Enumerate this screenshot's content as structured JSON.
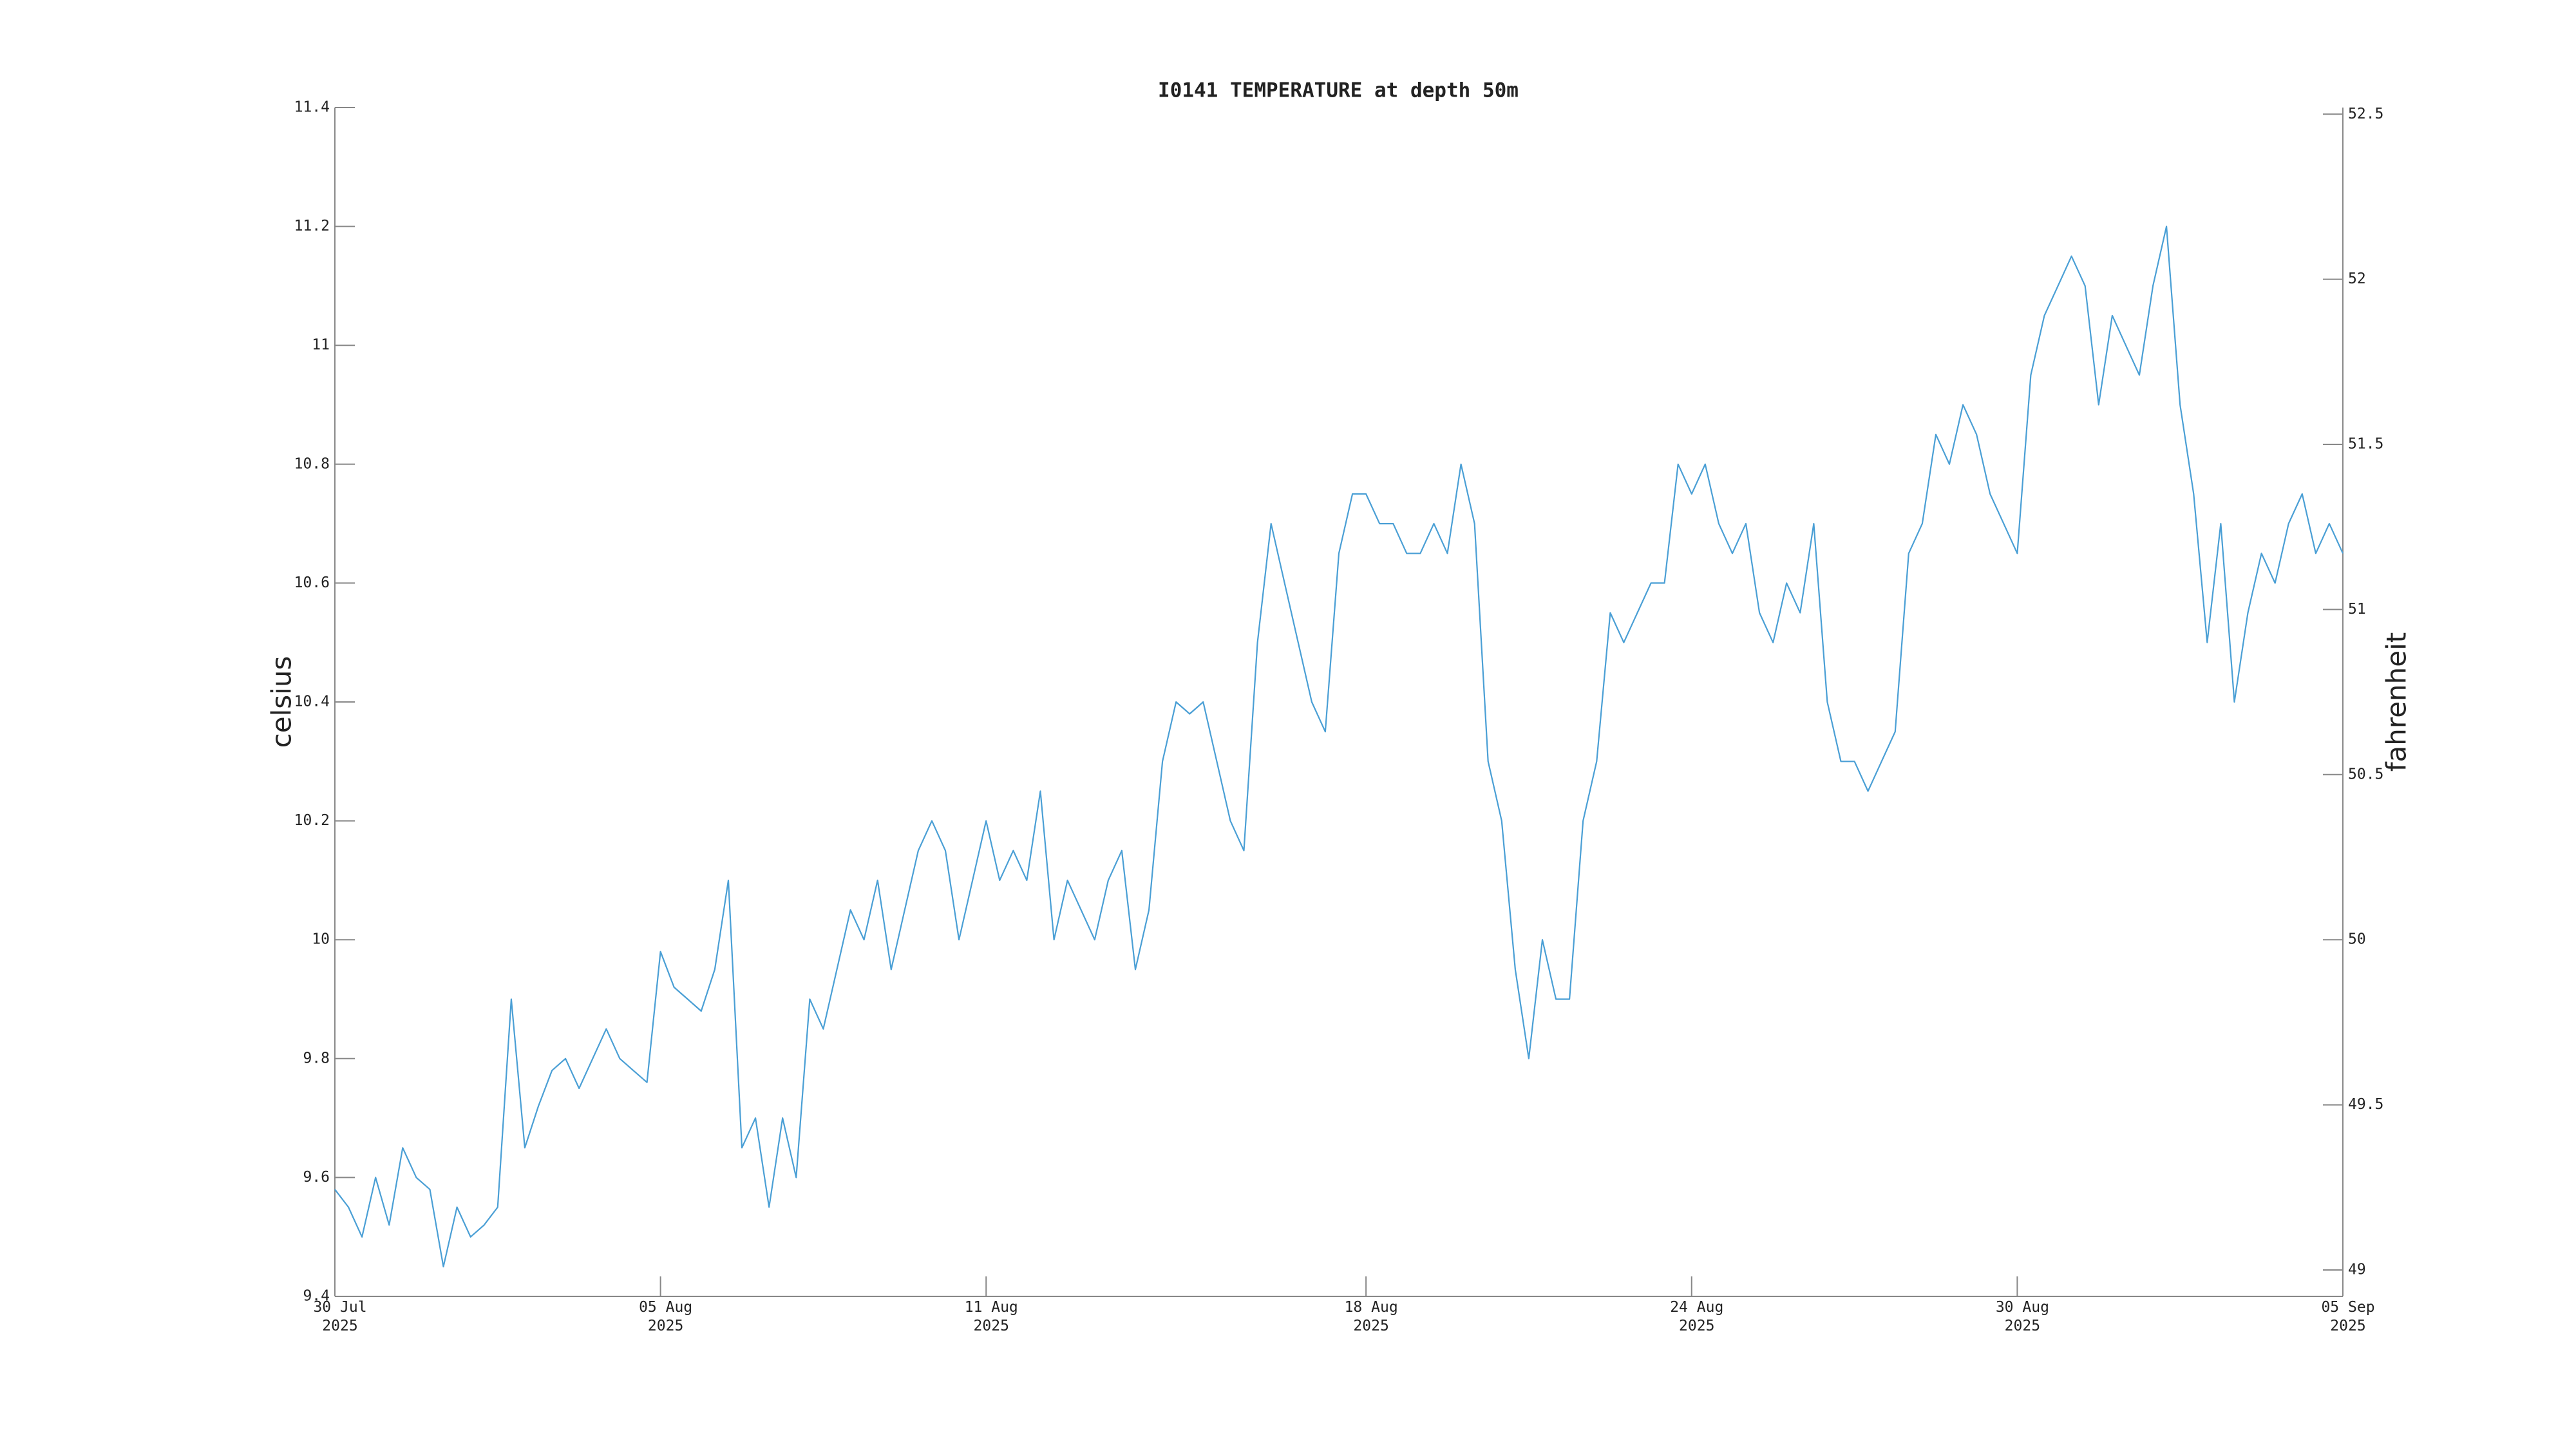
{
  "chart_data": {
    "type": "line",
    "title": "I0141 TEMPERATURE at depth 50m",
    "ylabel": "celsius",
    "y2label": "fahrenheit",
    "xlim": [
      "2025-07-30 00:00",
      "2025-09-05 00:00"
    ],
    "xticks": [
      {
        "value": "2025-07-30 00:00",
        "label": "30 Jul\n2025"
      },
      {
        "value": "2025-08-05 00:00",
        "label": "05 Aug\n2025"
      },
      {
        "value": "2025-08-11 00:00",
        "label": "11 Aug\n2025"
      },
      {
        "value": "2025-08-18 00:00",
        "label": "18 Aug\n2025"
      },
      {
        "value": "2025-08-24 00:00",
        "label": "24 Aug\n2025"
      },
      {
        "value": "2025-08-30 00:00",
        "label": "30 Aug\n2025"
      },
      {
        "value": "2025-09-05 00:00",
        "label": "05 Sep\n2025"
      }
    ],
    "ylim": [
      9.4,
      11.4
    ],
    "yticks": [
      9.4,
      9.6,
      9.8,
      10,
      10.2,
      10.4,
      10.6,
      10.8,
      11,
      11.2,
      11.4
    ],
    "y2lim": [
      48.92,
      52.52
    ],
    "y2ticks": [
      49,
      49.5,
      50,
      50.5,
      51,
      51.5,
      52,
      52.5
    ],
    "grid": false,
    "x": [
      "2025-07-30 00:00",
      "2025-07-30 06:00",
      "2025-07-30 12:00",
      "2025-07-30 18:00",
      "2025-07-31 00:00",
      "2025-07-31 06:00",
      "2025-07-31 12:00",
      "2025-07-31 18:00",
      "2025-08-01 00:00",
      "2025-08-01 06:00",
      "2025-08-01 12:00",
      "2025-08-01 18:00",
      "2025-08-02 00:00",
      "2025-08-02 06:00",
      "2025-08-02 12:00",
      "2025-08-02 18:00",
      "2025-08-03 00:00",
      "2025-08-03 06:00",
      "2025-08-03 12:00",
      "2025-08-03 18:00",
      "2025-08-04 00:00",
      "2025-08-04 06:00",
      "2025-08-04 12:00",
      "2025-08-04 18:00",
      "2025-08-05 00:00",
      "2025-08-05 06:00",
      "2025-08-05 12:00",
      "2025-08-05 18:00",
      "2025-08-06 00:00",
      "2025-08-06 06:00",
      "2025-08-06 12:00",
      "2025-08-06 18:00",
      "2025-08-07 00:00",
      "2025-08-07 06:00",
      "2025-08-07 12:00",
      "2025-08-07 18:00",
      "2025-08-08 00:00",
      "2025-08-08 06:00",
      "2025-08-08 12:00",
      "2025-08-08 18:00",
      "2025-08-09 00:00",
      "2025-08-09 06:00",
      "2025-08-09 12:00",
      "2025-08-09 18:00",
      "2025-08-10 00:00",
      "2025-08-10 06:00",
      "2025-08-10 12:00",
      "2025-08-10 18:00",
      "2025-08-11 00:00",
      "2025-08-11 06:00",
      "2025-08-11 12:00",
      "2025-08-11 18:00",
      "2025-08-12 00:00",
      "2025-08-12 06:00",
      "2025-08-12 12:00",
      "2025-08-12 18:00",
      "2025-08-13 00:00",
      "2025-08-13 06:00",
      "2025-08-13 12:00",
      "2025-08-13 18:00",
      "2025-08-14 00:00",
      "2025-08-14 06:00",
      "2025-08-14 12:00",
      "2025-08-14 18:00",
      "2025-08-15 00:00",
      "2025-08-15 06:00",
      "2025-08-15 12:00",
      "2025-08-15 18:00",
      "2025-08-16 00:00",
      "2025-08-16 06:00",
      "2025-08-16 12:00",
      "2025-08-16 18:00",
      "2025-08-17 00:00",
      "2025-08-17 06:00",
      "2025-08-17 12:00",
      "2025-08-17 18:00",
      "2025-08-18 00:00",
      "2025-08-18 06:00",
      "2025-08-18 12:00",
      "2025-08-18 18:00",
      "2025-08-19 00:00",
      "2025-08-19 06:00",
      "2025-08-19 12:00",
      "2025-08-19 18:00",
      "2025-08-20 00:00",
      "2025-08-20 06:00",
      "2025-08-20 12:00",
      "2025-08-20 18:00",
      "2025-08-21 00:00",
      "2025-08-21 06:00",
      "2025-08-21 12:00",
      "2025-08-21 18:00",
      "2025-08-22 00:00",
      "2025-08-22 06:00",
      "2025-08-22 12:00",
      "2025-08-22 18:00",
      "2025-08-23 00:00",
      "2025-08-23 06:00",
      "2025-08-23 12:00",
      "2025-08-23 18:00",
      "2025-08-24 00:00",
      "2025-08-24 06:00",
      "2025-08-24 12:00",
      "2025-08-24 18:00",
      "2025-08-25 00:00",
      "2025-08-25 06:00",
      "2025-08-25 12:00",
      "2025-08-25 18:00",
      "2025-08-26 00:00",
      "2025-08-26 06:00",
      "2025-08-26 12:00",
      "2025-08-26 18:00",
      "2025-08-27 00:00",
      "2025-08-27 06:00",
      "2025-08-27 12:00",
      "2025-08-27 18:00",
      "2025-08-28 00:00",
      "2025-08-28 06:00",
      "2025-08-28 12:00",
      "2025-08-28 18:00",
      "2025-08-29 00:00",
      "2025-08-29 06:00",
      "2025-08-29 12:00",
      "2025-08-29 18:00",
      "2025-08-30 00:00",
      "2025-08-30 06:00",
      "2025-08-30 12:00",
      "2025-08-30 18:00",
      "2025-08-31 00:00",
      "2025-08-31 06:00",
      "2025-08-31 12:00",
      "2025-08-31 18:00",
      "2025-09-01 00:00",
      "2025-09-01 06:00",
      "2025-09-01 12:00",
      "2025-09-01 18:00",
      "2025-09-02 00:00",
      "2025-09-02 06:00",
      "2025-09-02 12:00",
      "2025-09-02 18:00",
      "2025-09-03 00:00",
      "2025-09-03 06:00",
      "2025-09-03 12:00",
      "2025-09-03 18:00",
      "2025-09-04 00:00",
      "2025-09-04 06:00",
      "2025-09-04 12:00",
      "2025-09-04 18:00",
      "2025-09-05 00:00"
    ],
    "series": [
      {
        "name": "temperature",
        "color": "#4a9fd5",
        "values": [
          9.58,
          9.55,
          9.5,
          9.6,
          9.52,
          9.65,
          9.6,
          9.58,
          9.45,
          9.55,
          9.5,
          9.52,
          9.55,
          9.9,
          9.65,
          9.72,
          9.78,
          9.8,
          9.75,
          9.8,
          9.85,
          9.8,
          9.78,
          9.76,
          9.98,
          9.92,
          9.9,
          9.88,
          9.95,
          10.1,
          9.65,
          9.7,
          9.55,
          9.7,
          9.6,
          9.9,
          9.85,
          9.95,
          10.05,
          10.0,
          10.1,
          9.95,
          10.05,
          10.15,
          10.2,
          10.15,
          10.0,
          10.1,
          10.2,
          10.1,
          10.15,
          10.1,
          10.25,
          10.0,
          10.1,
          10.05,
          10.0,
          10.1,
          10.15,
          9.95,
          10.05,
          10.3,
          10.4,
          10.38,
          10.4,
          10.3,
          10.2,
          10.15,
          10.5,
          10.7,
          10.6,
          10.5,
          10.4,
          10.35,
          10.65,
          10.75,
          10.75,
          10.7,
          10.7,
          10.65,
          10.65,
          10.7,
          10.65,
          10.8,
          10.7,
          10.3,
          10.2,
          9.95,
          9.8,
          10.0,
          9.9,
          9.9,
          10.2,
          10.3,
          10.55,
          10.5,
          10.55,
          10.6,
          10.6,
          10.8,
          10.75,
          10.8,
          10.7,
          10.65,
          10.7,
          10.55,
          10.5,
          10.6,
          10.55,
          10.7,
          10.4,
          10.3,
          10.3,
          10.25,
          10.3,
          10.35,
          10.65,
          10.7,
          10.85,
          10.8,
          10.9,
          10.85,
          10.75,
          10.7,
          10.65,
          10.95,
          11.05,
          11.1,
          11.15,
          11.1,
          10.9,
          11.05,
          11.0,
          10.95,
          11.1,
          11.2,
          10.9,
          10.75,
          10.5,
          10.7,
          10.4,
          10.55,
          10.65,
          10.6,
          10.7,
          10.75,
          10.65,
          10.7,
          10.65
        ]
      }
    ]
  }
}
